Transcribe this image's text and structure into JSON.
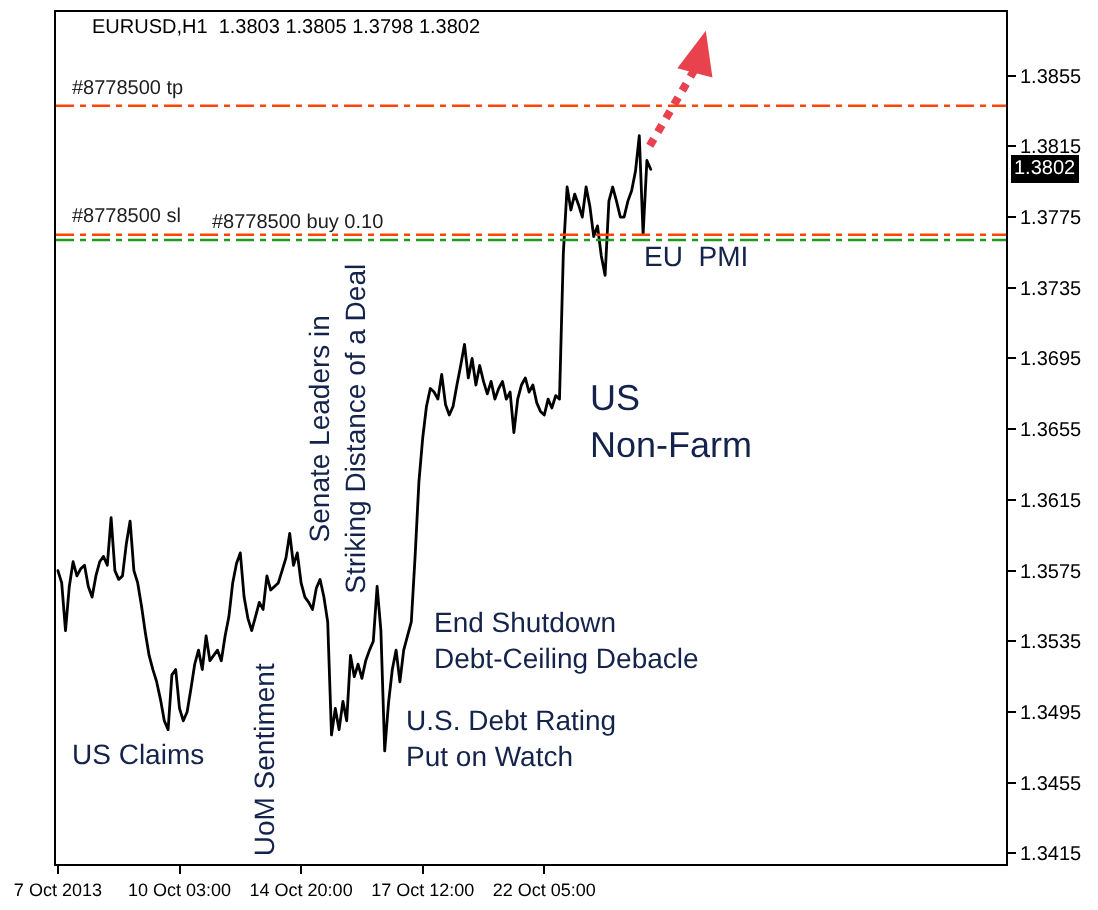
{
  "chart_data": {
    "type": "line",
    "title": "EURUSD,H1  1.3803 1.3805 1.3798 1.3802",
    "categories": [
      "7 Oct 2013",
      null,
      null,
      null,
      null,
      null,
      null,
      null,
      null,
      null,
      null,
      null,
      null,
      null,
      null,
      null,
      null,
      null,
      null,
      null,
      null,
      null,
      null,
      null,
      null,
      null,
      null,
      null,
      null,
      null,
      null,
      null,
      "10 Oct 03:00",
      null,
      null,
      null,
      null,
      null,
      null,
      null,
      null,
      null,
      null,
      null,
      null,
      null,
      null,
      null,
      null,
      null,
      null,
      null,
      null,
      null,
      null,
      null,
      null,
      null,
      null,
      null,
      null,
      null,
      null,
      null,
      "14 Oct 20:00",
      null,
      null,
      null,
      null,
      null,
      null,
      null,
      null,
      null,
      null,
      null,
      null,
      null,
      null,
      null,
      null,
      null,
      null,
      null,
      null,
      null,
      null,
      null,
      null,
      null,
      null,
      null,
      null,
      null,
      null,
      null,
      "17 Oct 12:00",
      null,
      null,
      null,
      null,
      null,
      null,
      null,
      null,
      null,
      null,
      null,
      null,
      null,
      null,
      null,
      null,
      null,
      null,
      null,
      null,
      null,
      null,
      null,
      null,
      null,
      null,
      null,
      null,
      null,
      null,
      null,
      "22 Oct 05:00",
      null,
      null,
      null,
      null,
      null,
      null,
      null,
      null,
      null,
      null,
      null,
      null,
      null,
      null,
      null,
      null,
      null,
      null,
      null,
      null,
      null,
      null,
      null,
      null,
      null,
      null,
      null,
      null,
      null,
      null,
      null,
      null,
      null,
      null,
      null,
      null,
      null,
      null,
      null,
      null,
      null,
      null,
      null,
      null,
      null,
      null,
      null,
      null,
      null,
      null,
      null,
      null,
      null,
      null,
      null,
      null,
      null,
      null,
      null,
      null,
      null,
      null,
      null,
      null,
      null,
      null,
      null,
      null,
      null,
      null,
      null,
      null,
      null,
      null,
      null,
      null,
      null,
      null,
      null,
      null,
      null,
      null,
      null,
      null,
      null,
      null,
      null,
      null,
      null,
      null,
      null,
      null,
      null,
      null,
      null,
      null,
      null,
      null,
      null,
      null,
      null,
      null,
      null,
      null,
      null,
      null,
      null,
      null,
      null,
      null,
      null,
      null,
      null,
      null,
      null,
      null,
      null,
      null,
      null,
      null,
      null
    ],
    "series": [
      {
        "color": "#000000",
        "values": [
          1.3575,
          1.3568,
          1.3541,
          1.3566,
          1.358,
          1.3572,
          1.3576,
          1.3578,
          1.3566,
          1.356,
          1.3572,
          1.358,
          1.3583,
          1.3578,
          1.3605,
          1.3575,
          1.357,
          1.3572,
          1.359,
          1.3603,
          1.3575,
          1.3568,
          1.3555,
          1.354,
          1.3527,
          1.3519,
          1.3512,
          1.3502,
          1.349,
          1.3485,
          1.3516,
          1.3519,
          1.3497,
          1.349,
          1.3495,
          1.3508,
          1.3522,
          1.353,
          1.3519,
          1.3538,
          1.3524,
          1.3527,
          1.353,
          1.3524,
          1.3538,
          1.3549,
          1.3568,
          1.3579,
          1.3585,
          1.356,
          1.3548,
          1.3541,
          1.3549,
          1.3557,
          1.3553,
          1.3572,
          1.3564,
          1.3566,
          1.3568,
          1.3575,
          1.3582,
          1.3596,
          1.3578,
          1.3585,
          1.3568,
          1.356,
          1.3557,
          1.3553,
          1.3565,
          1.357,
          1.356,
          1.3546,
          1.3482,
          1.3497,
          1.3485,
          1.3501,
          1.349,
          1.3527,
          1.3515,
          1.3522,
          1.3514,
          1.3524,
          1.353,
          1.3535,
          1.3566,
          1.3541,
          1.3473,
          1.35,
          1.3519,
          1.353,
          1.3512,
          1.353,
          1.3538,
          1.3546,
          1.3583,
          1.3625,
          1.365,
          1.3668,
          1.3678,
          1.3676,
          1.3672,
          1.3686,
          1.3669,
          1.3663,
          1.3668,
          1.368,
          1.3691,
          1.3703,
          1.3684,
          1.3695,
          1.368,
          1.3691,
          1.3682,
          1.3675,
          1.3682,
          1.3672,
          1.3678,
          1.3682,
          1.3672,
          1.3676,
          1.3653,
          1.3672,
          1.368,
          1.3684,
          1.3676,
          1.368,
          1.367,
          1.3665,
          1.3663,
          1.3672,
          1.3667,
          1.3674,
          1.3672,
          1.3754,
          1.3792,
          1.3779,
          1.3788,
          1.3782,
          1.3775,
          1.3792,
          1.3781,
          1.3764,
          1.377,
          1.3753,
          1.3742,
          1.3784,
          1.3792,
          1.3784,
          1.3775,
          1.3775,
          1.3784,
          1.379,
          1.3801,
          1.3821,
          1.3765,
          1.3807,
          1.3802,
          null,
          null,
          null,
          null,
          null,
          null,
          null,
          null,
          null,
          null,
          null,
          null,
          null,
          null,
          null,
          null,
          null,
          null,
          null,
          null,
          null,
          null,
          null,
          null,
          null,
          null,
          null,
          null,
          null,
          null,
          null,
          null,
          null,
          null,
          null,
          null,
          null,
          null,
          null,
          null,
          null,
          null,
          null,
          null,
          null,
          null,
          null,
          null,
          null,
          null,
          null,
          null,
          null,
          null,
          null,
          null,
          null,
          null,
          null,
          null,
          null,
          null,
          null,
          null,
          null,
          null,
          null,
          null,
          null,
          null,
          null,
          null,
          null,
          null,
          null,
          null,
          null,
          null,
          null,
          null,
          null,
          null,
          null,
          null,
          null,
          null,
          null,
          null,
          null,
          null,
          null,
          null,
          null
        ]
      }
    ],
    "ylim": [
      1.3409,
      1.3891
    ],
    "yticks": [
      1.3415,
      1.3455,
      1.3495,
      1.3535,
      1.3575,
      1.3615,
      1.3655,
      1.3695,
      1.3735,
      1.3775,
      1.3815,
      1.3855
    ],
    "ref_lines": [
      {
        "axis": "y",
        "value": 1.3838,
        "label": "#8778500 tp",
        "color": "#ff4500",
        "line_style": "dashed"
      },
      {
        "axis": "y",
        "value": 1.3765,
        "label": "#8778500 sl",
        "color": "#ff4500",
        "line_style": "dashed"
      },
      {
        "axis": "y",
        "value": 1.3762,
        "label": "#8778500 buy 0.10",
        "color": "#1e9a1e",
        "line_style": "dashed"
      }
    ],
    "annotations": [
      "US Claims",
      "UoM Sentiment",
      "Senate Leaders in\nStriking Distance of a Deal",
      "End Shutdown\nDebt-Ceiling Debacle",
      "U.S. Debt Rating\nPut on Watch",
      "US\nNon-Farm",
      "EU  PMI",
      {
        "text": "1.3802",
        "y": 1.3802
      }
    ]
  }
}
